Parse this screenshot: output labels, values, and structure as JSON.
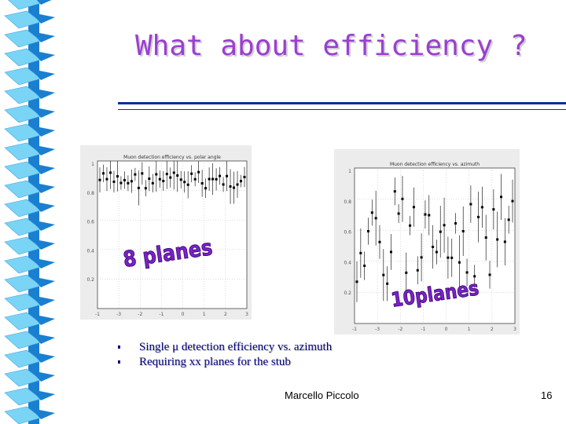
{
  "slide": {
    "title": "What about efficiency ?",
    "bullets": [
      "Single μ detection efficiency vs. azimuth",
      "Requiring xx planes for the stub"
    ],
    "footer_author": "Marcello Piccolo",
    "slide_number": "16"
  },
  "colors": {
    "title": "#9a3fd0",
    "ribbon_light": "#7ad4f5",
    "ribbon_dark": "#1a7fd0",
    "rule": "#0c2f9b",
    "bullet_text": "#000080",
    "badge_fill": "#7b22c9"
  },
  "chart_data": [
    {
      "type": "scatter",
      "title": "Muon detection efficiency vs. polar angle",
      "xticks": [
        "-1",
        "-3",
        "-2",
        "-1",
        "0",
        "1",
        "2",
        "3"
      ],
      "yticks": [
        "1",
        "0.8",
        "0.6",
        "0.4",
        "0.2"
      ],
      "badge": "8 planes",
      "grid": true
    },
    {
      "type": "scatter",
      "title": "Muon detection efficiency vs. azimuth",
      "xticks": [
        "-1",
        "-3",
        "-2",
        "-1",
        "0",
        "1",
        "2",
        "3"
      ],
      "yticks": [
        "1",
        "0.8",
        "0.6",
        "0.4",
        "0.2"
      ],
      "badge": "10planes",
      "grid": true
    }
  ]
}
